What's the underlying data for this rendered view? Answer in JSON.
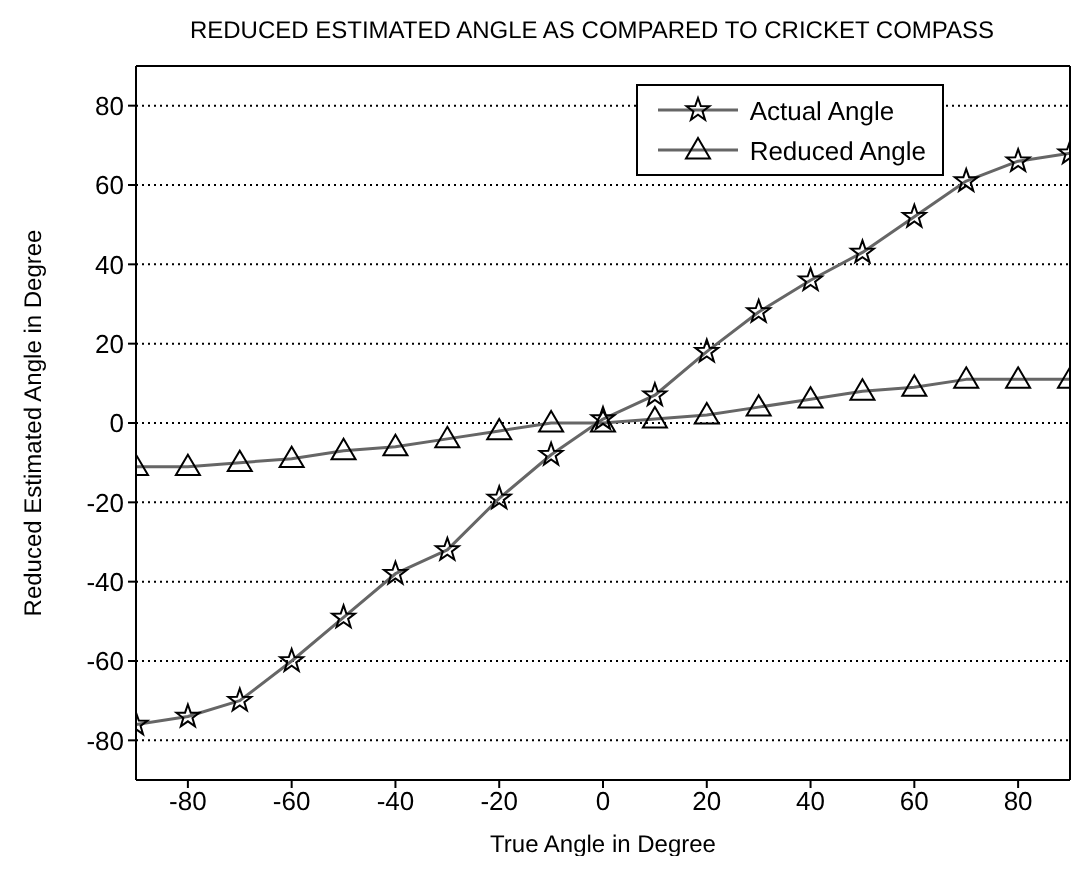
{
  "chart_data": {
    "type": "line",
    "title": "REDUCED ESTIMATED ANGLE AS COMPARED TO CRICKET COMPASS",
    "xlabel": "True Angle in Degree",
    "ylabel": "Reduced Estimated Angle in Degree",
    "x": [
      -90,
      -80,
      -70,
      -60,
      -50,
      -40,
      -30,
      -20,
      -10,
      0,
      10,
      20,
      30,
      40,
      50,
      60,
      70,
      80,
      90
    ],
    "series": [
      {
        "name": "Actual Angle",
        "color": "#666666",
        "marker": "star",
        "values": [
          -76,
          -74,
          -70,
          -60,
          -49,
          -38,
          -32,
          -19,
          -8,
          1,
          7,
          18,
          28,
          36,
          43,
          52,
          61,
          66,
          68
        ]
      },
      {
        "name": "Reduced Angle",
        "color": "#666666",
        "marker": "triangle",
        "values": [
          -11,
          -11,
          -10,
          -9,
          -7,
          -6,
          -4,
          -2,
          0,
          0,
          1,
          2,
          4,
          6,
          8,
          9,
          11,
          11,
          11
        ]
      }
    ],
    "xlim": [
      -90,
      90
    ],
    "xticks": [
      -80,
      -60,
      -40,
      -20,
      0,
      20,
      40,
      60,
      80
    ],
    "ylim": [
      -90,
      90
    ],
    "yticks": [
      -80,
      -60,
      -40,
      -20,
      0,
      20,
      40,
      60,
      80
    ],
    "grid": "y",
    "legend": "top right"
  }
}
